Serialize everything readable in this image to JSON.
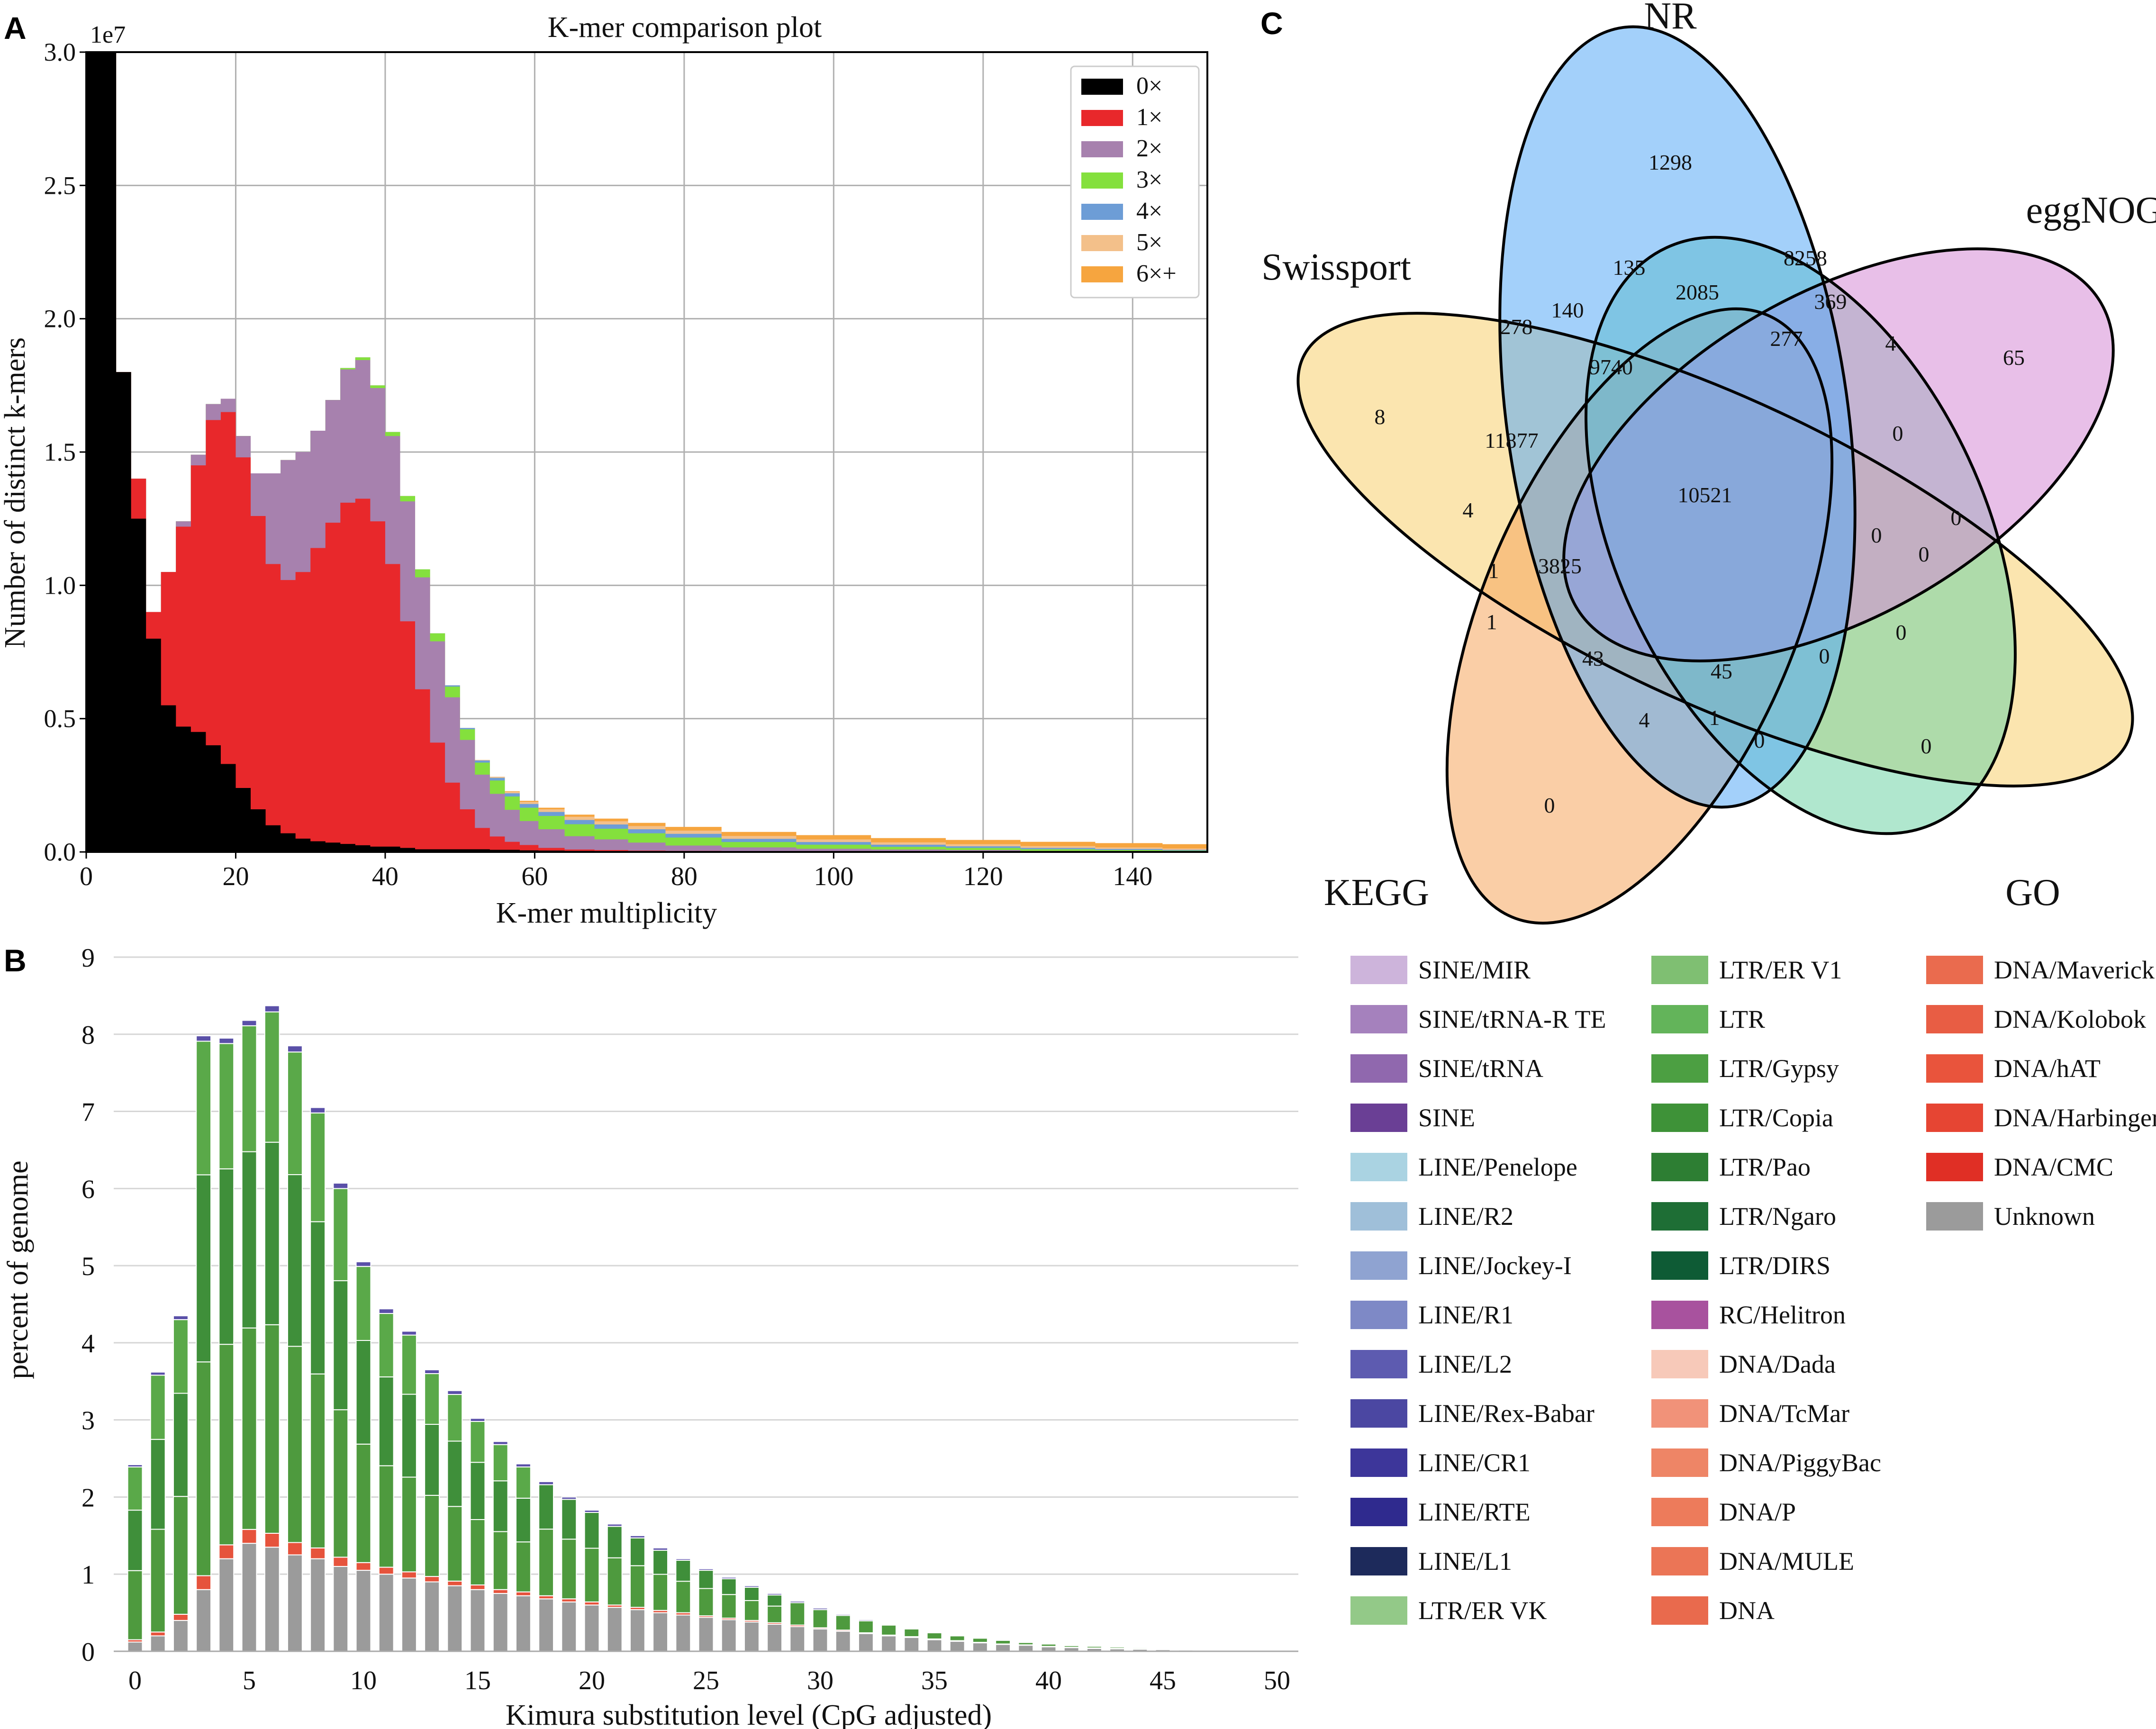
{
  "panel_labels": {
    "a": "A",
    "b": "B",
    "c": "C"
  },
  "chart_data": [
    {
      "type": "bar",
      "id": "A",
      "title": "K-mer comparison plot",
      "xlabel": "K-mer multiplicity",
      "ylabel": "Number of distinct k-mers",
      "exponent_label": "1e7",
      "xlim": [
        0,
        150
      ],
      "ylim": [
        0,
        3.0
      ],
      "xticks": [
        "0",
        "20",
        "40",
        "60",
        "80",
        "100",
        "120",
        "140"
      ],
      "yticks": [
        "0.0",
        "0.5",
        "1.0",
        "1.5",
        "2.0",
        "2.5",
        "3.0"
      ],
      "legend_position": "top-right",
      "series": [
        {
          "name": "0×",
          "color": "#000000"
        },
        {
          "name": "1×",
          "color": "#e8282b"
        },
        {
          "name": "2×",
          "color": "#a781ae"
        },
        {
          "name": "3×",
          "color": "#84e03d"
        },
        {
          "name": "4×",
          "color": "#6d9dd6"
        },
        {
          "name": "5×",
          "color": "#f3c08a"
        },
        {
          "name": "6×+",
          "color": "#f6a53f"
        }
      ],
      "stack_data": {
        "x": [
          1,
          3,
          5,
          7,
          9,
          11,
          13,
          15,
          17,
          19,
          21,
          23,
          25,
          27,
          29,
          31,
          33,
          35,
          37,
          39,
          41,
          43,
          45,
          47,
          49,
          51,
          53,
          55,
          57,
          59,
          62,
          66,
          70,
          75,
          80,
          90,
          100,
          110,
          120,
          130,
          140,
          148
        ],
        "zero": [
          3.0,
          3.0,
          1.8,
          1.25,
          0.8,
          0.55,
          0.47,
          0.45,
          0.4,
          0.33,
          0.24,
          0.16,
          0.1,
          0.07,
          0.05,
          0.04,
          0.035,
          0.03,
          0.025,
          0.02,
          0.02,
          0.015,
          0.01,
          0.01,
          0.01,
          0.01,
          0.01,
          0.008,
          0.008,
          0.006,
          0.005,
          0.004,
          0.003,
          0.002,
          0.002,
          0.001,
          0.001,
          0.001,
          0.001,
          0.0,
          0.0,
          0.0
        ],
        "one": [
          0.0,
          0.0,
          0.0,
          0.15,
          0.1,
          0.5,
          0.75,
          1.0,
          1.22,
          1.32,
          1.24,
          1.1,
          0.98,
          0.95,
          1.0,
          1.1,
          1.2,
          1.28,
          1.3,
          1.22,
          1.06,
          0.85,
          0.6,
          0.4,
          0.25,
          0.15,
          0.08,
          0.05,
          0.03,
          0.02,
          0.01,
          0.005,
          0.004,
          0.003,
          0.002,
          0.001,
          0.001,
          0.0,
          0.0,
          0.0,
          0.0,
          0.0
        ],
        "two": [
          0.0,
          0.0,
          0.0,
          0.0,
          0.0,
          0.0,
          0.02,
          0.04,
          0.06,
          0.05,
          0.08,
          0.16,
          0.34,
          0.45,
          0.45,
          0.44,
          0.46,
          0.5,
          0.52,
          0.5,
          0.48,
          0.45,
          0.42,
          0.38,
          0.32,
          0.26,
          0.2,
          0.16,
          0.12,
          0.09,
          0.07,
          0.05,
          0.04,
          0.03,
          0.02,
          0.015,
          0.01,
          0.008,
          0.006,
          0.004,
          0.003,
          0.002
        ],
        "three": [
          0.0,
          0.0,
          0.0,
          0.0,
          0.0,
          0.0,
          0.0,
          0.0,
          0.0,
          0.0,
          0.0,
          0.0,
          0.0,
          0.0,
          0.0,
          0.0,
          0.0,
          0.005,
          0.01,
          0.01,
          0.015,
          0.02,
          0.03,
          0.03,
          0.04,
          0.04,
          0.045,
          0.05,
          0.05,
          0.05,
          0.05,
          0.045,
          0.04,
          0.035,
          0.03,
          0.02,
          0.015,
          0.01,
          0.008,
          0.006,
          0.004,
          0.003
        ],
        "four": [
          0.0,
          0.0,
          0.0,
          0.0,
          0.0,
          0.0,
          0.0,
          0.0,
          0.0,
          0.0,
          0.0,
          0.0,
          0.0,
          0.0,
          0.0,
          0.0,
          0.0,
          0.0,
          0.0,
          0.0,
          0.0,
          0.0,
          0.0,
          0.0,
          0.005,
          0.005,
          0.008,
          0.01,
          0.012,
          0.014,
          0.015,
          0.016,
          0.016,
          0.015,
          0.014,
          0.012,
          0.01,
          0.008,
          0.006,
          0.005,
          0.004,
          0.003
        ],
        "five": [
          0.0,
          0.0,
          0.0,
          0.0,
          0.0,
          0.0,
          0.0,
          0.0,
          0.0,
          0.0,
          0.0,
          0.0,
          0.0,
          0.0,
          0.0,
          0.0,
          0.0,
          0.0,
          0.0,
          0.0,
          0.0,
          0.0,
          0.0,
          0.0,
          0.0,
          0.0,
          0.002,
          0.004,
          0.006,
          0.008,
          0.01,
          0.012,
          0.012,
          0.012,
          0.012,
          0.011,
          0.01,
          0.009,
          0.008,
          0.007,
          0.006,
          0.005
        ],
        "six": [
          0.0,
          0.0,
          0.0,
          0.0,
          0.0,
          0.0,
          0.0,
          0.0,
          0.0,
          0.0,
          0.0,
          0.0,
          0.0,
          0.0,
          0.0,
          0.0,
          0.0,
          0.0,
          0.0,
          0.0,
          0.0,
          0.0,
          0.0,
          0.0,
          0.0,
          0.0,
          0.0,
          0.0,
          0.002,
          0.004,
          0.006,
          0.008,
          0.01,
          0.012,
          0.014,
          0.015,
          0.016,
          0.016,
          0.016,
          0.016,
          0.016,
          0.016
        ]
      }
    },
    {
      "type": "bar",
      "id": "B",
      "title": "",
      "xlabel": "Kimura substitution level (CpG adjusted)",
      "ylabel": "percent of genome",
      "xlim": [
        0,
        50
      ],
      "ylim": [
        0,
        9
      ],
      "xticks": [
        "0",
        "5",
        "10",
        "15",
        "20",
        "25",
        "30",
        "35",
        "40",
        "45",
        "50"
      ],
      "yticks": [
        "0",
        "1",
        "2",
        "3",
        "4",
        "5",
        "6",
        "7",
        "8",
        "9"
      ],
      "categories": [
        0,
        1,
        2,
        3,
        4,
        5,
        6,
        7,
        8,
        9,
        10,
        11,
        12,
        13,
        14,
        15,
        16,
        17,
        18,
        19,
        20,
        21,
        22,
        23,
        24,
        25,
        26,
        27,
        28,
        29,
        30,
        31,
        32,
        33,
        34,
        35,
        36,
        37,
        38,
        39,
        40,
        41,
        42,
        43,
        44,
        45,
        46,
        47,
        48,
        49,
        50
      ],
      "totals": [
        2.42,
        3.62,
        4.35,
        7.98,
        7.95,
        8.18,
        8.37,
        7.85,
        7.05,
        6.07,
        5.05,
        4.44,
        4.15,
        3.65,
        3.38,
        3.02,
        2.72,
        2.43,
        2.2,
        2.0,
        1.83,
        1.65,
        1.5,
        1.34,
        1.2,
        1.07,
        0.96,
        0.85,
        0.75,
        0.65,
        0.56,
        0.48,
        0.41,
        0.35,
        0.3,
        0.25,
        0.21,
        0.18,
        0.15,
        0.12,
        0.1,
        0.08,
        0.07,
        0.06,
        0.05,
        0.04,
        0.035,
        0.03,
        0.025,
        0.02,
        0.02
      ],
      "unknown": [
        0.12,
        0.2,
        0.4,
        0.8,
        1.2,
        1.4,
        1.35,
        1.25,
        1.2,
        1.1,
        1.05,
        1.0,
        0.95,
        0.9,
        0.85,
        0.8,
        0.75,
        0.72,
        0.68,
        0.64,
        0.6,
        0.57,
        0.54,
        0.5,
        0.47,
        0.44,
        0.41,
        0.38,
        0.35,
        0.32,
        0.29,
        0.26,
        0.23,
        0.2,
        0.18,
        0.15,
        0.13,
        0.11,
        0.09,
        0.08,
        0.06,
        0.05,
        0.04,
        0.035,
        0.03,
        0.025,
        0.02,
        0.018,
        0.015,
        0.012,
        0.012
      ],
      "dna": [
        0.03,
        0.05,
        0.08,
        0.18,
        0.18,
        0.18,
        0.18,
        0.16,
        0.14,
        0.12,
        0.1,
        0.09,
        0.08,
        0.07,
        0.06,
        0.06,
        0.05,
        0.05,
        0.04,
        0.04,
        0.04,
        0.03,
        0.03,
        0.03,
        0.03,
        0.02,
        0.02,
        0.02,
        0.02,
        0.02,
        0.015,
        0.015,
        0.01,
        0.01,
        0.01,
        0.01,
        0.008,
        0.006,
        0.005,
        0.004,
        0.004,
        0.003,
        0.003,
        0.002,
        0.002,
        0.002,
        0.002,
        0.001,
        0.001,
        0.001,
        0.001
      ],
      "sine_line": [
        0.03,
        0.04,
        0.05,
        0.07,
        0.07,
        0.07,
        0.08,
        0.08,
        0.07,
        0.07,
        0.06,
        0.06,
        0.05,
        0.05,
        0.05,
        0.04,
        0.04,
        0.04,
        0.04,
        0.03,
        0.03,
        0.03,
        0.03,
        0.03,
        0.02,
        0.02,
        0.02,
        0.02,
        0.02,
        0.02,
        0.02,
        0.015,
        0.015,
        0.01,
        0.01,
        0.01,
        0.01,
        0.01,
        0.008,
        0.006,
        0.005,
        0.004,
        0.004,
        0.003,
        0.003,
        0.002,
        0.002,
        0.002,
        0.002,
        0.001,
        0.001
      ],
      "ltr_colors": [
        "#4e9a3e",
        "#3f8f3a",
        "#5aa949"
      ],
      "unknown_color": "#9b9b9b",
      "dna_color": "#e6533c",
      "sine_line_color": "#5a50a8",
      "legend_columns": [
        [
          {
            "name": "SINE/MIR",
            "color": "#cdb4db"
          },
          {
            "name": "SINE/tRNA-R TE",
            "color": "#a581bd"
          },
          {
            "name": "SINE/tRNA",
            "color": "#9068ae"
          },
          {
            "name": "SINE",
            "color": "#6a3f95"
          },
          {
            "name": "LINE/Penelope",
            "color": "#aad3e2"
          },
          {
            "name": "LINE/R2",
            "color": "#9fbfd9"
          },
          {
            "name": "LINE/Jockey-I",
            "color": "#8fa3d1"
          },
          {
            "name": "LINE/R1",
            "color": "#7e89c6"
          },
          {
            "name": "LINE/L2",
            "color": "#5d5bb0"
          },
          {
            "name": "LINE/Rex-Babar",
            "color": "#4b47a2"
          },
          {
            "name": "LINE/CR1",
            "color": "#3d369a"
          },
          {
            "name": "LINE/RTE",
            "color": "#2f2a8e"
          },
          {
            "name": "LINE/L1",
            "color": "#1d2a5b"
          },
          {
            "name": "LTR/ER VK",
            "color": "#93c988"
          }
        ],
        [
          {
            "name": "LTR/ER V1",
            "color": "#7fbf72"
          },
          {
            "name": "LTR",
            "color": "#63b45a"
          },
          {
            "name": "LTR/Gypsy",
            "color": "#4c9f42"
          },
          {
            "name": "LTR/Copia",
            "color": "#3e9238"
          },
          {
            "name": "LTR/Pao",
            "color": "#2d7e33"
          },
          {
            "name": "LTR/Ngaro",
            "color": "#1e6e35"
          },
          {
            "name": "LTR/DIRS",
            "color": "#0e5b35"
          },
          {
            "name": "RC/Helitron",
            "color": "#a8529e"
          },
          {
            "name": "DNA/Dada",
            "color": "#f7c9b9"
          },
          {
            "name": "DNA/TcMar",
            "color": "#f19279"
          },
          {
            "name": "DNA/PiggyBac",
            "color": "#ee8566"
          },
          {
            "name": "DNA/P",
            "color": "#ed7b5b"
          },
          {
            "name": "DNA/MULE",
            "color": "#eb7556"
          },
          {
            "name": "DNA",
            "color": "#e96a4d"
          }
        ],
        [
          {
            "name": "DNA/Maverick",
            "color": "#ea6b4e"
          },
          {
            "name": "DNA/Kolobok",
            "color": "#e85d44"
          },
          {
            "name": "DNA/hAT",
            "color": "#e9543c"
          },
          {
            "name": "DNA/Harbinger",
            "color": "#e64533"
          },
          {
            "name": "DNA/CMC",
            "color": "#e02f25"
          },
          {
            "name": "Unknown",
            "color": "#9b9b9b"
          }
        ]
      ]
    },
    {
      "type": "venn",
      "id": "C",
      "sets": [
        {
          "name": "NR",
          "color": "#58aaf5"
        },
        {
          "name": "eggNOG",
          "color": "#d68ad6"
        },
        {
          "name": "Swissport",
          "color": "#f7cf6e"
        },
        {
          "name": "KEGG",
          "color": "#f6a55c"
        },
        {
          "name": "GO",
          "color": "#6fd4a5"
        }
      ],
      "regions": [
        {
          "label": "NR only",
          "value": "1298"
        },
        {
          "label": "eggNOG only",
          "value": "65"
        },
        {
          "label": "Swissport only",
          "value": "8"
        },
        {
          "label": "KEGG only",
          "value": "0"
        },
        {
          "label": "GO only",
          "value": "0"
        },
        {
          "label": "r135",
          "value": "135"
        },
        {
          "label": "r8258",
          "value": "8258"
        },
        {
          "label": "r2085",
          "value": "2085"
        },
        {
          "label": "r369",
          "value": "369"
        },
        {
          "label": "r278",
          "value": "278"
        },
        {
          "label": "r140",
          "value": "140"
        },
        {
          "label": "r277",
          "value": "277"
        },
        {
          "label": "r4a",
          "value": "4"
        },
        {
          "label": "r9740",
          "value": "9740"
        },
        {
          "label": "r11877",
          "value": "11877"
        },
        {
          "label": "r0a",
          "value": "0"
        },
        {
          "label": "all",
          "value": "10521"
        },
        {
          "label": "r4b",
          "value": "4"
        },
        {
          "label": "r0b",
          "value": "0"
        },
        {
          "label": "r0c",
          "value": "0"
        },
        {
          "label": "r0d",
          "value": "0"
        },
        {
          "label": "r1a",
          "value": "1"
        },
        {
          "label": "r3825",
          "value": "3825"
        },
        {
          "label": "r1b",
          "value": "1"
        },
        {
          "label": "r43",
          "value": "43"
        },
        {
          "label": "r45",
          "value": "45"
        },
        {
          "label": "r0e",
          "value": "0"
        },
        {
          "label": "r0f",
          "value": "0"
        },
        {
          "label": "r4c",
          "value": "4"
        },
        {
          "label": "r1c",
          "value": "1"
        },
        {
          "label": "r0g",
          "value": "0"
        }
      ]
    }
  ]
}
